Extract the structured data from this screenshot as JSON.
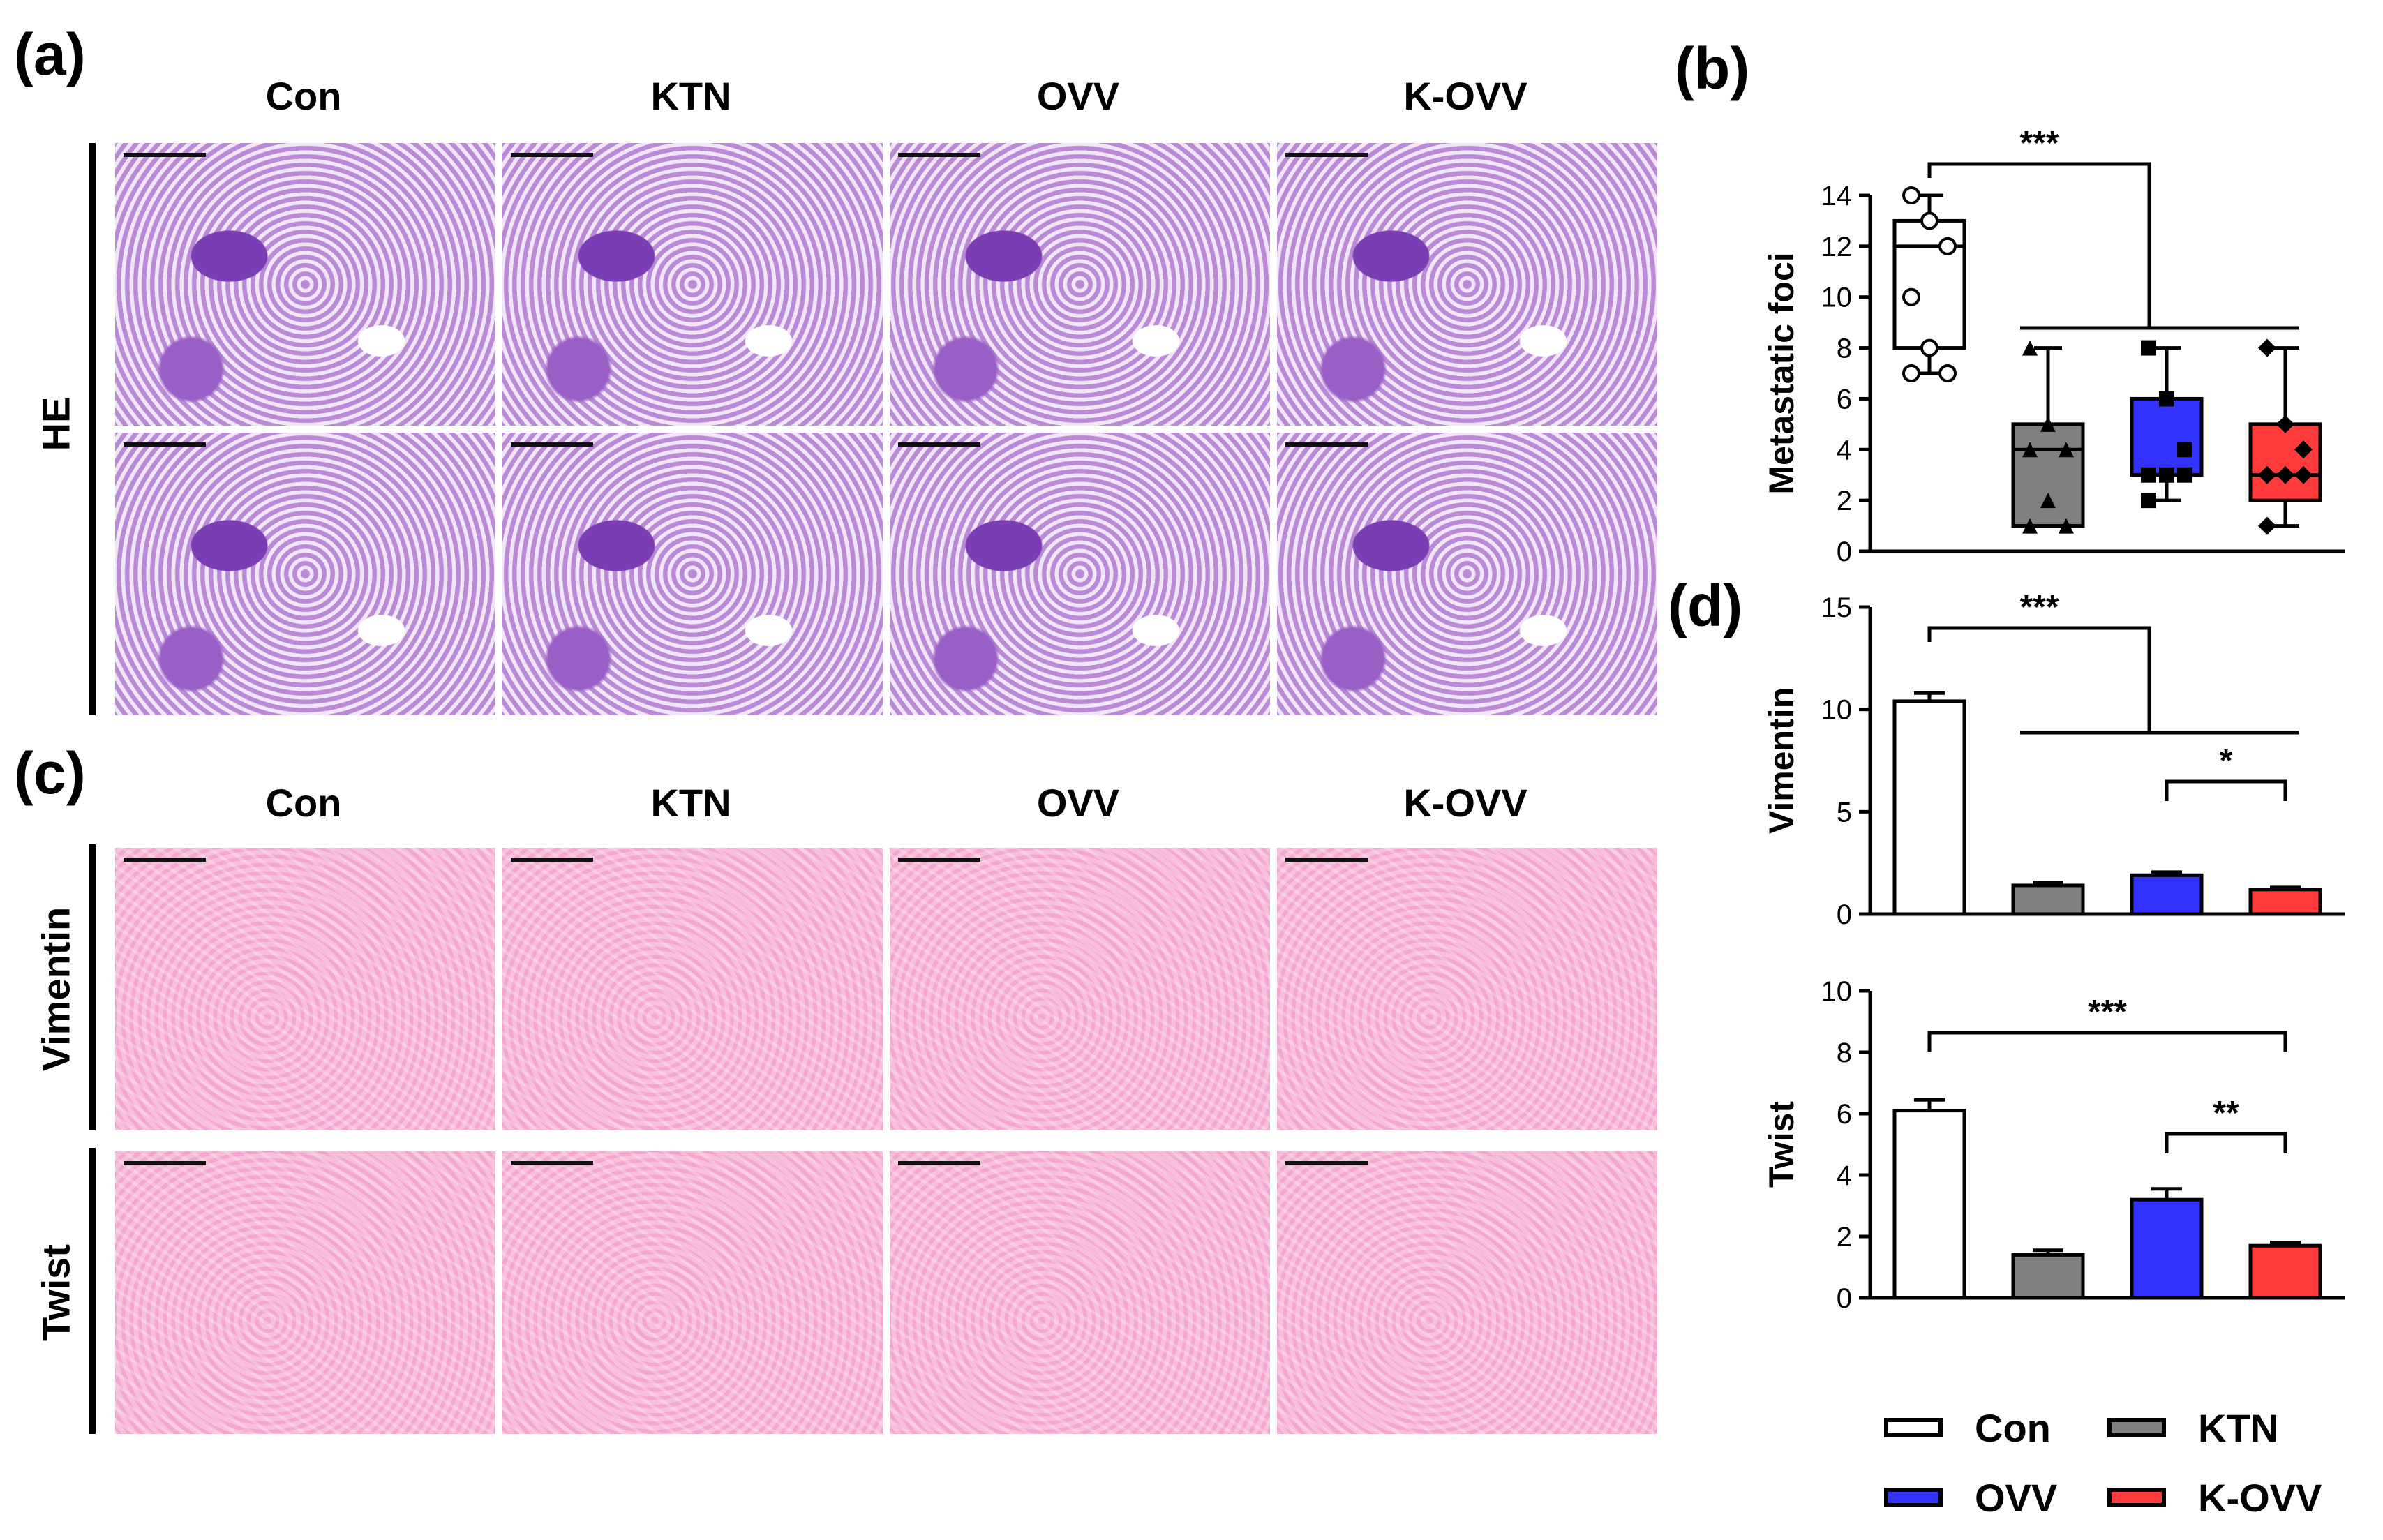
{
  "panels": {
    "a": "(a)",
    "b": "(b)",
    "c": "(c)",
    "d": "(d)"
  },
  "groups": [
    "Con",
    "KTN",
    "OVV",
    "K-OVV"
  ],
  "rows_a": [
    "HE"
  ],
  "rows_c": [
    "Vimentin",
    "Twist"
  ],
  "colors": {
    "Con": "#ffffff",
    "KTN": "#808080",
    "OVV": "#3333ff",
    "K-OVV": "#ff3b3b",
    "he_stain": "#8e4fc2",
    "ihc_stain": "#f6b4d6"
  },
  "legend": [
    {
      "label": "Con",
      "color": "#ffffff"
    },
    {
      "label": "KTN",
      "color": "#808080"
    },
    {
      "label": "OVV",
      "color": "#3333ff"
    },
    {
      "label": "K-OVV",
      "color": "#ff3b3b"
    }
  ],
  "chart_data": [
    {
      "type": "box",
      "panel": "(b)",
      "ylabel": "Metastatic foci",
      "ylim": [
        0,
        14
      ],
      "yticks": [
        0,
        2,
        4,
        6,
        8,
        10,
        12,
        14
      ],
      "categories": [
        "Con",
        "KTN",
        "OVV",
        "K-OVV"
      ],
      "boxes": [
        {
          "name": "Con",
          "min": 7,
          "q1": 8,
          "median": 12,
          "q3": 13,
          "max": 14,
          "points": [
            14,
            13,
            12,
            10,
            8,
            7,
            7
          ],
          "marker": "circle"
        },
        {
          "name": "KTN",
          "min": 1,
          "q1": 1,
          "median": 4,
          "q3": 5,
          "max": 8,
          "points": [
            8,
            5,
            4,
            4,
            2,
            1,
            1
          ],
          "marker": "triangle"
        },
        {
          "name": "OVV",
          "min": 2,
          "q1": 3,
          "median": 3,
          "q3": 6,
          "max": 8,
          "points": [
            8,
            6,
            4,
            3,
            3,
            3,
            2
          ],
          "marker": "square"
        },
        {
          "name": "K-OVV",
          "min": 1,
          "q1": 2,
          "median": 3,
          "q3": 5,
          "max": 8,
          "points": [
            8,
            5,
            4,
            3,
            3,
            3,
            1
          ],
          "marker": "diamond"
        }
      ],
      "significance": [
        {
          "label": "***",
          "from": "Con",
          "to": [
            "KTN",
            "OVV",
            "K-OVV"
          ]
        }
      ]
    },
    {
      "type": "bar",
      "panel": "(d)",
      "ylabel": "Vimentin",
      "ylim": [
        0,
        15
      ],
      "yticks": [
        0,
        5,
        10,
        15
      ],
      "categories": [
        "Con",
        "KTN",
        "OVV",
        "K-OVV"
      ],
      "values": [
        10.4,
        1.4,
        1.9,
        1.2
      ],
      "errors": [
        0.4,
        0.15,
        0.15,
        0.1
      ],
      "significance": [
        {
          "label": "***",
          "from": "Con",
          "to": [
            "KTN",
            "OVV",
            "K-OVV"
          ]
        },
        {
          "label": "*",
          "from": "OVV",
          "to": [
            "K-OVV"
          ]
        }
      ]
    },
    {
      "type": "bar",
      "panel": "(d)",
      "ylabel": "Twist",
      "ylim": [
        0,
        10
      ],
      "yticks": [
        0,
        2,
        4,
        6,
        8,
        10
      ],
      "categories": [
        "Con",
        "KTN",
        "OVV",
        "K-OVV"
      ],
      "values": [
        6.1,
        1.4,
        3.2,
        1.7
      ],
      "errors": [
        0.35,
        0.15,
        0.35,
        0.1
      ],
      "significance": [
        {
          "label": "***",
          "from": "Con",
          "to": [
            "K-OVV"
          ]
        },
        {
          "label": "**",
          "from": "OVV",
          "to": [
            "K-OVV"
          ]
        }
      ]
    }
  ]
}
